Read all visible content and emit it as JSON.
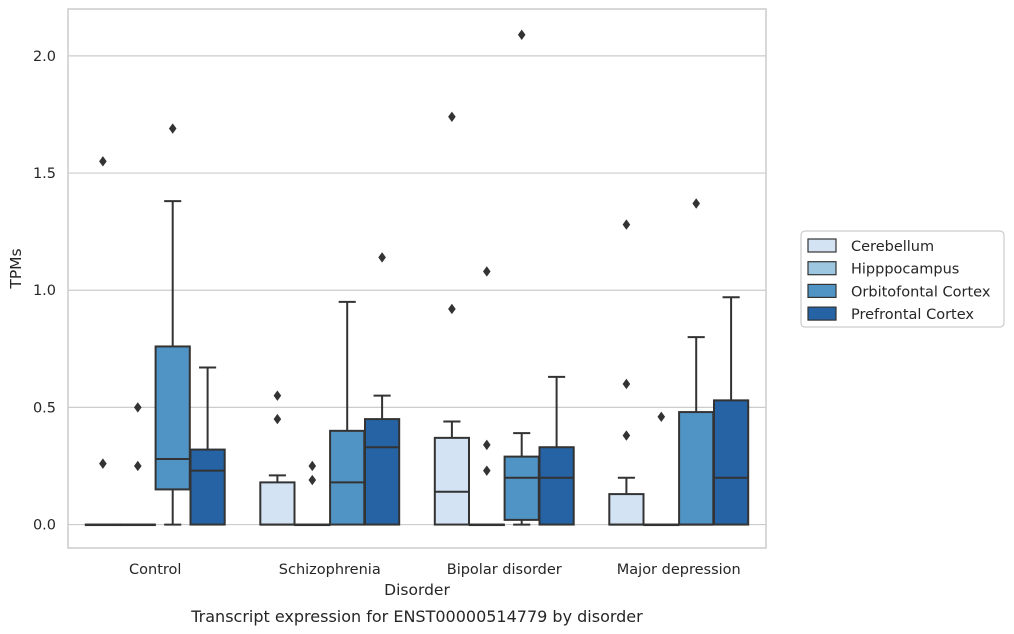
{
  "chart_data": {
    "type": "box",
    "xlabel": "Disorder",
    "ylabel": "TPMs",
    "caption": "Transcript expression for ENST00000514779 by disorder",
    "ylim": [
      -0.1,
      2.2
    ],
    "yticks": [
      "0.0",
      "0.5",
      "1.0",
      "1.5",
      "2.0"
    ],
    "ytick_values": [
      0.0,
      0.5,
      1.0,
      1.5,
      2.0
    ],
    "grid": "horizontal",
    "legend_position": "right",
    "categories": [
      "Control",
      "Schizophrenia",
      "Bipolar disorder",
      "Major depression"
    ],
    "series": [
      {
        "name": "Cerebellum",
        "color": "#d3e3f3",
        "boxes": [
          {
            "q1": 0.0,
            "median": 0.0,
            "q3": 0.0,
            "whislo": 0.0,
            "whishi": 0.0,
            "fliers": [
              0.26,
              1.55
            ]
          },
          {
            "q1": 0.0,
            "median": 0.0,
            "q3": 0.18,
            "whislo": 0.0,
            "whishi": 0.21,
            "fliers": [
              0.45,
              0.55
            ]
          },
          {
            "q1": 0.0,
            "median": 0.14,
            "q3": 0.37,
            "whislo": 0.0,
            "whishi": 0.44,
            "fliers": [
              0.92,
              1.74
            ]
          },
          {
            "q1": 0.0,
            "median": 0.0,
            "q3": 0.13,
            "whislo": 0.0,
            "whishi": 0.2,
            "fliers": [
              0.38,
              0.6,
              1.28
            ]
          }
        ]
      },
      {
        "name": "Hipppocampus",
        "color": "#9dc7e0",
        "boxes": [
          {
            "q1": 0.0,
            "median": 0.0,
            "q3": 0.0,
            "whislo": 0.0,
            "whishi": 0.0,
            "fliers": [
              0.25,
              0.5
            ]
          },
          {
            "q1": 0.0,
            "median": 0.0,
            "q3": 0.0,
            "whislo": 0.0,
            "whishi": 0.0,
            "fliers": [
              0.19,
              0.25
            ]
          },
          {
            "q1": 0.0,
            "median": 0.0,
            "q3": 0.0,
            "whislo": 0.0,
            "whishi": 0.0,
            "fliers": [
              0.23,
              0.34,
              1.08
            ]
          },
          {
            "q1": 0.0,
            "median": 0.0,
            "q3": 0.0,
            "whislo": 0.0,
            "whishi": 0.0,
            "fliers": [
              0.46
            ]
          }
        ]
      },
      {
        "name": "Orbitofontal Cortex",
        "color": "#5094c5",
        "boxes": [
          {
            "q1": 0.15,
            "median": 0.28,
            "q3": 0.76,
            "whislo": 0.0,
            "whishi": 1.38,
            "fliers": [
              1.69
            ]
          },
          {
            "q1": 0.0,
            "median": 0.18,
            "q3": 0.4,
            "whislo": 0.0,
            "whishi": 0.95,
            "fliers": []
          },
          {
            "q1": 0.02,
            "median": 0.2,
            "q3": 0.29,
            "whislo": 0.0,
            "whishi": 0.39,
            "fliers": [
              2.09
            ]
          },
          {
            "q1": 0.0,
            "median": 0.0,
            "q3": 0.48,
            "whislo": 0.0,
            "whishi": 0.8,
            "fliers": [
              1.37
            ]
          }
        ]
      },
      {
        "name": "Prefrontal Cortex",
        "color": "#2563a5",
        "boxes": [
          {
            "q1": 0.0,
            "median": 0.23,
            "q3": 0.32,
            "whislo": 0.0,
            "whishi": 0.67,
            "fliers": []
          },
          {
            "q1": 0.0,
            "median": 0.33,
            "q3": 0.45,
            "whislo": 0.0,
            "whishi": 0.55,
            "fliers": [
              1.14
            ]
          },
          {
            "q1": 0.0,
            "median": 0.2,
            "q3": 0.33,
            "whislo": 0.0,
            "whishi": 0.63,
            "fliers": []
          },
          {
            "q1": 0.0,
            "median": 0.2,
            "q3": 0.53,
            "whislo": 0.0,
            "whishi": 0.97,
            "fliers": []
          }
        ]
      }
    ]
  }
}
